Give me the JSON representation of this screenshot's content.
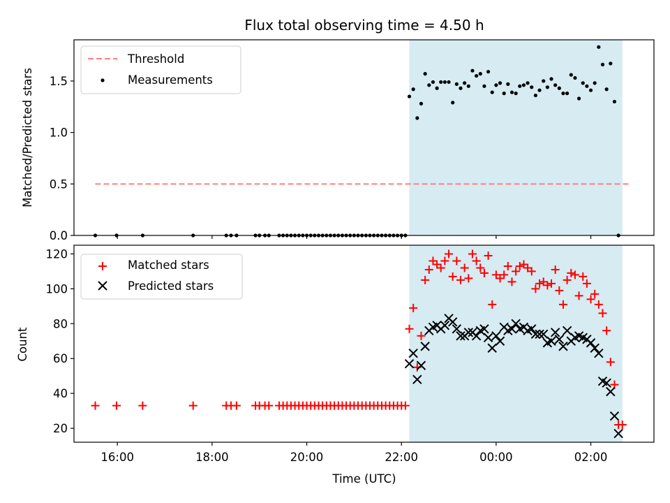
{
  "chart_data": [
    {
      "type": "scatter",
      "title": "Flux total observing time = 4.50 h",
      "ylabel": "Matched/Predicted stars",
      "xlabel": "",
      "xlim": [
        "15:05",
        "27:20"
      ],
      "ylim": [
        0,
        1.9
      ],
      "yticks": [
        "0.0",
        "0.5",
        "1.0",
        "1.5"
      ],
      "grid": false,
      "legend": "upper-left",
      "legend_entries": [
        "Threshold",
        "Measurements"
      ],
      "shaded_span": [
        "22:10",
        "26:40"
      ],
      "shade_color": "#add8e6",
      "threshold": {
        "name": "Threshold",
        "value": 0.5,
        "x": [
          "15:32",
          "26:48"
        ],
        "color": "#ff7f7f",
        "style": "dashed"
      },
      "series": [
        {
          "name": "Measurements",
          "color": "#000000",
          "marker": "dot",
          "points": [
            [
              "15:32",
              0
            ],
            [
              "15:59",
              0
            ],
            [
              "16:32",
              0
            ],
            [
              "17:36",
              0
            ],
            [
              "18:18",
              0
            ],
            [
              "18:24",
              0
            ],
            [
              "18:31",
              0
            ],
            [
              "18:55",
              0
            ],
            [
              "19:00",
              0
            ],
            [
              "19:07",
              0
            ],
            [
              "19:12",
              0
            ],
            [
              "19:25",
              0
            ],
            [
              "19:30",
              0
            ],
            [
              "19:35",
              0
            ],
            [
              "19:40",
              0
            ],
            [
              "19:45",
              0
            ],
            [
              "19:50",
              0
            ],
            [
              "19:55",
              0
            ],
            [
              "20:00",
              0
            ],
            [
              "20:05",
              0
            ],
            [
              "20:10",
              0
            ],
            [
              "20:15",
              0
            ],
            [
              "20:20",
              0
            ],
            [
              "20:25",
              0
            ],
            [
              "20:30",
              0
            ],
            [
              "20:35",
              0
            ],
            [
              "20:40",
              0
            ],
            [
              "20:45",
              0
            ],
            [
              "20:50",
              0
            ],
            [
              "20:55",
              0
            ],
            [
              "21:00",
              0
            ],
            [
              "21:05",
              0
            ],
            [
              "21:10",
              0
            ],
            [
              "21:15",
              0
            ],
            [
              "21:20",
              0
            ],
            [
              "21:25",
              0
            ],
            [
              "21:30",
              0
            ],
            [
              "21:35",
              0
            ],
            [
              "21:40",
              0
            ],
            [
              "21:45",
              0
            ],
            [
              "21:50",
              0
            ],
            [
              "21:55",
              0
            ],
            [
              "22:00",
              0
            ],
            [
              "22:05",
              0
            ],
            [
              "22:10",
              1.35
            ],
            [
              "22:15",
              1.42
            ],
            [
              "22:20",
              1.14
            ],
            [
              "22:25",
              1.28
            ],
            [
              "22:30",
              1.57
            ],
            [
              "22:35",
              1.46
            ],
            [
              "22:40",
              1.49
            ],
            [
              "22:45",
              1.43
            ],
            [
              "22:50",
              1.49
            ],
            [
              "22:55",
              1.49
            ],
            [
              "23:00",
              1.49
            ],
            [
              "23:05",
              1.29
            ],
            [
              "23:10",
              1.47
            ],
            [
              "23:15",
              1.43
            ],
            [
              "23:20",
              1.48
            ],
            [
              "23:25",
              1.45
            ],
            [
              "23:30",
              1.6
            ],
            [
              "23:35",
              1.55
            ],
            [
              "23:40",
              1.57
            ],
            [
              "23:45",
              1.45
            ],
            [
              "23:50",
              1.59
            ],
            [
              "23:55",
              1.39
            ],
            [
              "00:00",
              1.46
            ],
            [
              "00:05",
              1.48
            ],
            [
              "00:10",
              1.38
            ],
            [
              "00:15",
              1.47
            ],
            [
              "00:20",
              1.39
            ],
            [
              "00:25",
              1.38
            ],
            [
              "00:30",
              1.45
            ],
            [
              "00:35",
              1.46
            ],
            [
              "00:40",
              1.48
            ],
            [
              "00:45",
              1.44
            ],
            [
              "00:50",
              1.36
            ],
            [
              "00:55",
              1.41
            ],
            [
              "01:00",
              1.5
            ],
            [
              "01:05",
              1.44
            ],
            [
              "01:10",
              1.52
            ],
            [
              "01:15",
              1.46
            ],
            [
              "01:20",
              1.43
            ],
            [
              "01:25",
              1.38
            ],
            [
              "01:30",
              1.38
            ],
            [
              "01:35",
              1.56
            ],
            [
              "01:40",
              1.53
            ],
            [
              "01:45",
              1.33
            ],
            [
              "01:50",
              1.48
            ],
            [
              "01:55",
              1.45
            ],
            [
              "02:00",
              1.41
            ],
            [
              "02:05",
              1.48
            ],
            [
              "02:10",
              1.83
            ],
            [
              "02:15",
              1.66
            ],
            [
              "02:20",
              1.42
            ],
            [
              "02:25",
              1.67
            ],
            [
              "02:30",
              1.3
            ],
            [
              "02:35",
              0
            ]
          ]
        }
      ]
    },
    {
      "type": "scatter",
      "title": "",
      "ylabel": "Count",
      "xlabel": "Time (UTC)",
      "xlim": [
        "15:05",
        "27:20"
      ],
      "ylim": [
        12,
        125
      ],
      "yticks": [
        "20",
        "40",
        "60",
        "80",
        "100",
        "120"
      ],
      "xticks": [
        "16:00",
        "18:00",
        "20:00",
        "22:00",
        "00:00",
        "02:00"
      ],
      "grid": false,
      "legend": "upper-left",
      "legend_entries": [
        "Matched stars",
        "Predicted stars"
      ],
      "shaded_span": [
        "22:10",
        "26:40"
      ],
      "shade_color": "#add8e6",
      "series": [
        {
          "name": "Matched stars",
          "color": "#ff0000",
          "marker": "plus",
          "points": [
            [
              "15:32",
              33
            ],
            [
              "15:59",
              33
            ],
            [
              "16:32",
              33
            ],
            [
              "17:36",
              33
            ],
            [
              "18:18",
              33
            ],
            [
              "18:24",
              33
            ],
            [
              "18:31",
              33
            ],
            [
              "18:55",
              33
            ],
            [
              "19:00",
              33
            ],
            [
              "19:07",
              33
            ],
            [
              "19:12",
              33
            ],
            [
              "19:25",
              33
            ],
            [
              "19:30",
              33
            ],
            [
              "19:35",
              33
            ],
            [
              "19:40",
              33
            ],
            [
              "19:45",
              33
            ],
            [
              "19:50",
              33
            ],
            [
              "19:55",
              33
            ],
            [
              "20:00",
              33
            ],
            [
              "20:05",
              33
            ],
            [
              "20:10",
              33
            ],
            [
              "20:15",
              33
            ],
            [
              "20:20",
              33
            ],
            [
              "20:25",
              33
            ],
            [
              "20:30",
              33
            ],
            [
              "20:35",
              33
            ],
            [
              "20:40",
              33
            ],
            [
              "20:45",
              33
            ],
            [
              "20:50",
              33
            ],
            [
              "20:55",
              33
            ],
            [
              "21:00",
              33
            ],
            [
              "21:05",
              33
            ],
            [
              "21:10",
              33
            ],
            [
              "21:15",
              33
            ],
            [
              "21:20",
              33
            ],
            [
              "21:25",
              33
            ],
            [
              "21:30",
              33
            ],
            [
              "21:35",
              33
            ],
            [
              "21:40",
              33
            ],
            [
              "21:45",
              33
            ],
            [
              "21:50",
              33
            ],
            [
              "21:55",
              33
            ],
            [
              "22:00",
              33
            ],
            [
              "22:05",
              33
            ],
            [
              "22:10",
              77
            ],
            [
              "22:15",
              89
            ],
            [
              "22:20",
              55
            ],
            [
              "22:25",
              73
            ],
            [
              "22:30",
              105
            ],
            [
              "22:35",
              111
            ],
            [
              "22:40",
              116
            ],
            [
              "22:45",
              114
            ],
            [
              "22:50",
              112
            ],
            [
              "22:55",
              116
            ],
            [
              "23:00",
              120
            ],
            [
              "23:05",
              107
            ],
            [
              "23:10",
              116
            ],
            [
              "23:15",
              105
            ],
            [
              "23:20",
              112
            ],
            [
              "23:25",
              106
            ],
            [
              "23:30",
              120
            ],
            [
              "23:35",
              116
            ],
            [
              "23:40",
              112
            ],
            [
              "23:45",
              109
            ],
            [
              "23:50",
              119
            ],
            [
              "23:55",
              91
            ],
            [
              "00:00",
              108
            ],
            [
              "00:05",
              106
            ],
            [
              "00:10",
              108
            ],
            [
              "00:15",
              113
            ],
            [
              "00:20",
              104
            ],
            [
              "00:25",
              110
            ],
            [
              "00:30",
              113
            ],
            [
              "00:35",
              114
            ],
            [
              "00:40",
              112
            ],
            [
              "00:45",
              110
            ],
            [
              "00:50",
              100
            ],
            [
              "00:55",
              103
            ],
            [
              "01:00",
              104
            ],
            [
              "01:05",
              102
            ],
            [
              "01:10",
              103
            ],
            [
              "01:15",
              111
            ],
            [
              "01:20",
              99
            ],
            [
              "01:25",
              91
            ],
            [
              "01:30",
              105
            ],
            [
              "01:35",
              109
            ],
            [
              "01:40",
              108
            ],
            [
              "01:45",
              96
            ],
            [
              "01:50",
              107
            ],
            [
              "01:55",
              103
            ],
            [
              "02:00",
              94
            ],
            [
              "02:05",
              97
            ],
            [
              "02:10",
              91
            ],
            [
              "02:15",
              86
            ],
            [
              "02:20",
              76
            ],
            [
              "02:25",
              58
            ],
            [
              "02:30",
              45
            ],
            [
              "02:35",
              22
            ],
            [
              "02:40",
              22
            ]
          ]
        },
        {
          "name": "Predicted stars",
          "color": "#000000",
          "marker": "x",
          "points": [
            [
              "22:10",
              57
            ],
            [
              "22:15",
              63
            ],
            [
              "22:20",
              48
            ],
            [
              "22:25",
              56
            ],
            [
              "22:30",
              67
            ],
            [
              "22:35",
              76
            ],
            [
              "22:40",
              78
            ],
            [
              "22:45",
              79
            ],
            [
              "22:50",
              77
            ],
            [
              "22:55",
              79
            ],
            [
              "23:00",
              83
            ],
            [
              "23:05",
              81
            ],
            [
              "23:10",
              77
            ],
            [
              "23:15",
              73
            ],
            [
              "23:20",
              73
            ],
            [
              "23:25",
              75
            ],
            [
              "23:30",
              75
            ],
            [
              "23:35",
              73
            ],
            [
              "23:40",
              76
            ],
            [
              "23:45",
              77
            ],
            [
              "23:50",
              72
            ],
            [
              "23:55",
              66
            ],
            [
              "00:00",
              73
            ],
            [
              "00:05",
              70
            ],
            [
              "00:10",
              78
            ],
            [
              "00:15",
              76
            ],
            [
              "00:20",
              77
            ],
            [
              "00:25",
              80
            ],
            [
              "00:30",
              77
            ],
            [
              "00:35",
              78
            ],
            [
              "00:40",
              76
            ],
            [
              "00:45",
              77
            ],
            [
              "00:50",
              74
            ],
            [
              "00:55",
              74
            ],
            [
              "01:00",
              74
            ],
            [
              "01:05",
              69
            ],
            [
              "01:10",
              70
            ],
            [
              "01:15",
              75
            ],
            [
              "01:20",
              71
            ],
            [
              "01:25",
              67
            ],
            [
              "01:30",
              76
            ],
            [
              "01:35",
              70
            ],
            [
              "01:40",
              72
            ],
            [
              "01:45",
              73
            ],
            [
              "01:50",
              72
            ],
            [
              "01:55",
              71
            ],
            [
              "02:00",
              69
            ],
            [
              "02:05",
              66
            ],
            [
              "02:10",
              63
            ],
            [
              "02:15",
              47
            ],
            [
              "02:20",
              46
            ],
            [
              "02:25",
              41
            ],
            [
              "02:30",
              27
            ],
            [
              "02:35",
              17
            ]
          ]
        }
      ]
    }
  ]
}
